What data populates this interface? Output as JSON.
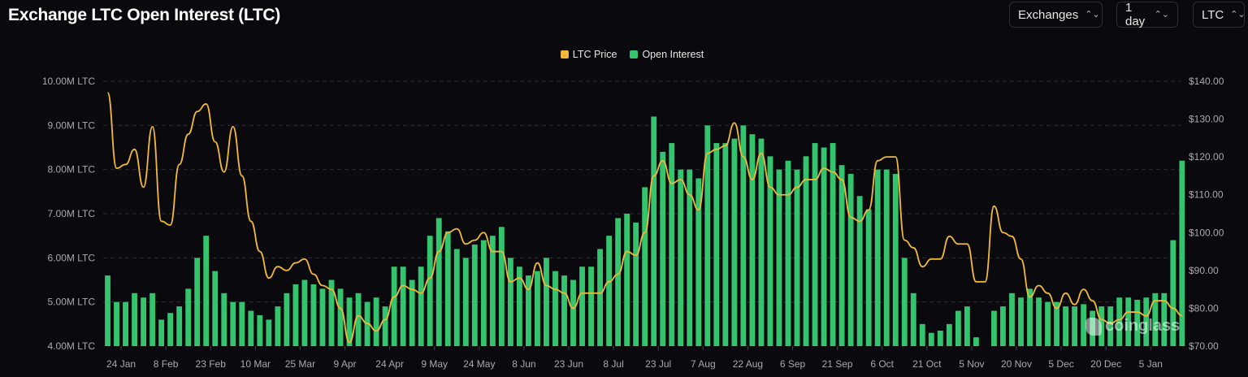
{
  "header": {
    "title": "Exchange LTC Open Interest (LTC)",
    "controls": [
      {
        "label": "Exchanges",
        "icon": "chevron-up-down-icon"
      },
      {
        "label": "1 day",
        "icon": "chevron-up-down-icon"
      },
      {
        "label": "LTC",
        "icon": "chevron-up-down-icon"
      }
    ]
  },
  "watermark": "coinglass",
  "colors": {
    "price": "#f0b93a",
    "oi": "#34c46e",
    "grid": "#2c2c33",
    "background": "#0a0a0e"
  },
  "chart_data": {
    "type": "bar+line",
    "title": "Exchange LTC Open Interest (LTC)",
    "legend": [
      {
        "name": "LTC Price",
        "type": "line"
      },
      {
        "name": "Open Interest",
        "type": "bar"
      }
    ],
    "legend_placement": "top-center",
    "x_step_days": 3,
    "x_total_days": 361,
    "x_ticks": {
      "first_tick_day": 6,
      "interval_days": 15,
      "labels": [
        "24 Jan",
        "8 Feb",
        "23 Feb",
        "10 Mar",
        "25 Mar",
        "9 Apr",
        "24 Apr",
        "9 May",
        "24 May",
        "8 Jun",
        "23 Jun",
        "8 Jul",
        "23 Jul",
        "7 Aug",
        "22 Aug",
        "6 Sep",
        "21 Sep",
        "6 Oct",
        "21 Oct",
        "5 Nov",
        "20 Nov",
        "5 Dec",
        "20 Dec",
        "5 Jan"
      ]
    },
    "y_left": {
      "label": "Open Interest",
      "range": [
        4,
        10
      ],
      "unit": "M LTC",
      "ticks": [
        "10.00M LTC",
        "9.00M LTC",
        "8.00M LTC",
        "7.00M LTC",
        "6.00M LTC",
        "5.00M LTC",
        "4.00M LTC"
      ]
    },
    "y_right": {
      "label": "LTC Price",
      "range": [
        70,
        140
      ],
      "unit": "USD",
      "ticks": [
        "$140.00",
        "$130.00",
        "$120.00",
        "$110.00",
        "$100.00",
        "$90.00",
        "$80.00",
        "$70.00"
      ]
    },
    "grid": true,
    "series": [
      {
        "name": "Open Interest",
        "axis": "left",
        "values": [
          5.6,
          5.0,
          5.0,
          5.2,
          5.1,
          5.2,
          4.6,
          4.75,
          4.9,
          5.3,
          6.0,
          6.5,
          5.7,
          5.2,
          5.0,
          5.0,
          4.8,
          4.7,
          4.6,
          4.9,
          5.2,
          5.4,
          5.5,
          5.4,
          5.3,
          5.5,
          5.3,
          5.1,
          5.2,
          5.0,
          5.1,
          4.9,
          5.8,
          5.8,
          5.5,
          5.8,
          6.5,
          6.9,
          6.6,
          6.2,
          6.0,
          6.3,
          6.4,
          6.5,
          6.7,
          6.0,
          5.8,
          5.6,
          5.7,
          6.0,
          5.7,
          5.6,
          5.5,
          5.8,
          5.8,
          6.2,
          6.5,
          6.9,
          7.0,
          6.8,
          7.6,
          9.2,
          8.4,
          8.6,
          8.0,
          8.0,
          7.8,
          9.0,
          8.6,
          8.6,
          8.7,
          9.0,
          8.8,
          8.7,
          8.3,
          8.0,
          8.2,
          8.0,
          8.3,
          8.6,
          8.5,
          8.6,
          8.1,
          7.9,
          7.4,
          7.1,
          8.0,
          8.0,
          7.9,
          6.0,
          5.2,
          4.5,
          4.3,
          4.35,
          4.5,
          4.8,
          4.9,
          4.2,
          4.0,
          4.8,
          4.9,
          5.2,
          5.1,
          5.3,
          5.1,
          5.0,
          5.0,
          4.9,
          4.9,
          4.95,
          4.8,
          4.9,
          4.9,
          5.1,
          5.1,
          5.05,
          5.1,
          5.2,
          5.2,
          6.4,
          8.2
        ]
      },
      {
        "name": "LTC Price",
        "axis": "right",
        "values": [
          137,
          117,
          118,
          122,
          112,
          128,
          103,
          102,
          118,
          126,
          132,
          134,
          124,
          116,
          128,
          115,
          103,
          95,
          88,
          91,
          90,
          92,
          93,
          89,
          86,
          85,
          80,
          71,
          78,
          76,
          74,
          77,
          83,
          86,
          85,
          84,
          88,
          95,
          100,
          101,
          97,
          98,
          100,
          95,
          95,
          87,
          88,
          85,
          92,
          86,
          85,
          84,
          80,
          84,
          84,
          84,
          87,
          89,
          95,
          94,
          100,
          115,
          119,
          113,
          114,
          110,
          106,
          121,
          122,
          123,
          129,
          120,
          114,
          121,
          112,
          110,
          110,
          112,
          114,
          114,
          117,
          116,
          114,
          104,
          103,
          106,
          119,
          120,
          120,
          98,
          96,
          91,
          93,
          93,
          99,
          97,
          97,
          87,
          87,
          107,
          100,
          99,
          93,
          83,
          86,
          84,
          80,
          84,
          81,
          85,
          82,
          77,
          76,
          77,
          79,
          79,
          78,
          82,
          82,
          80,
          78
        ]
      }
    ]
  }
}
